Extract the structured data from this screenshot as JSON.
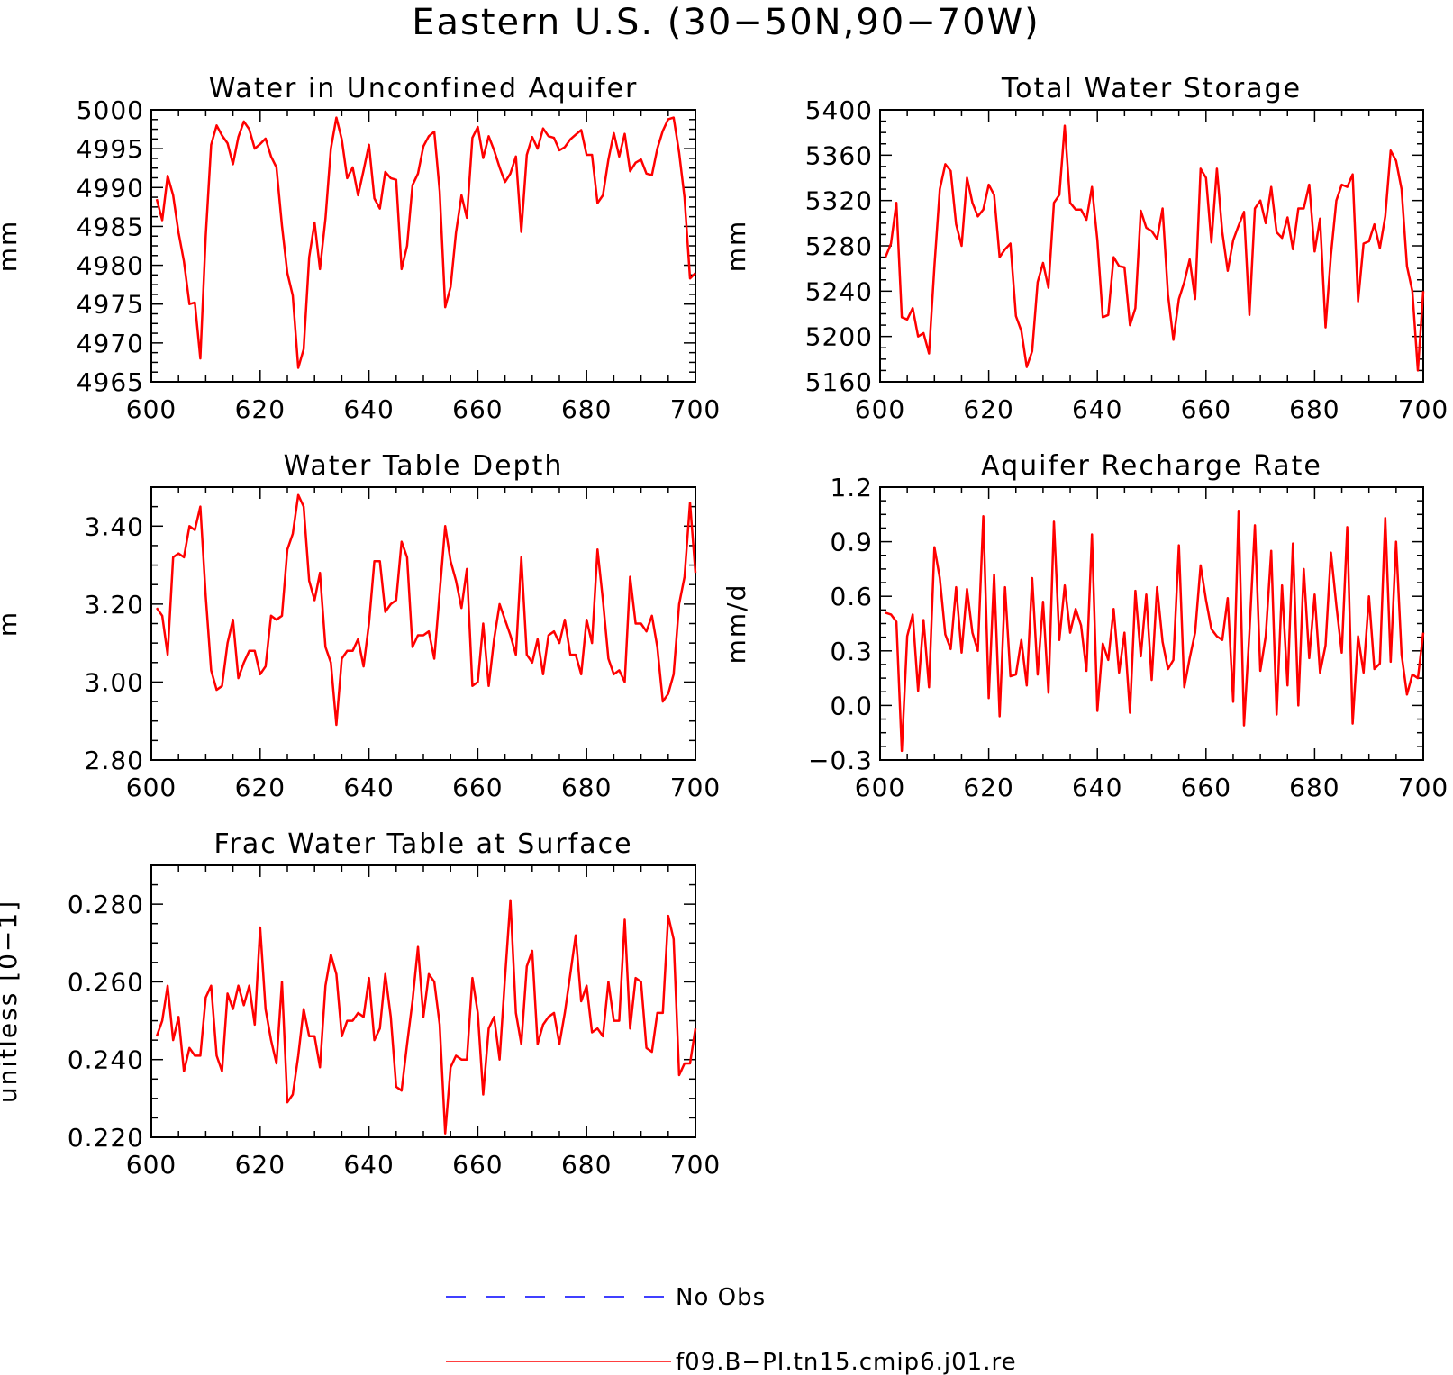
{
  "figure": {
    "title": "Eastern U.S. (30−50N,90−70W)"
  },
  "colors": {
    "model_line": "#ff0000",
    "obs_line": "#0000ff",
    "axes": "#000000"
  },
  "legend": [
    {
      "label": "No Obs",
      "style": "dashed",
      "color": "#0000ff"
    },
    {
      "label": "f09.B−PI.tn15.cmip6.j01.re",
      "style": "solid",
      "color": "#ff0000"
    }
  ],
  "chart_data": [
    {
      "type": "line",
      "title": "Water in Unconfined Aquifer",
      "xlabel": "",
      "ylabel": "mm",
      "xlim": [
        600,
        700
      ],
      "ylim": [
        4965,
        5000
      ],
      "xticks": [
        600,
        620,
        640,
        660,
        680,
        700
      ],
      "yticks": [
        4965,
        4970,
        4975,
        4980,
        4985,
        4990,
        4995,
        5000
      ],
      "ytick_labels": [
        "4965",
        "4970",
        "4975",
        "4980",
        "4985",
        "4990",
        "4995",
        "5000"
      ],
      "series": [
        {
          "name": "f09.B−PI.tn15.cmip6.j01.re",
          "x_start": 601,
          "x_step": 1,
          "values": [
            4988.5,
            4985.8,
            4991.5,
            4989,
            4984.2,
            4980.5,
            4975,
            4975.2,
            4968,
            4983.8,
            4995.5,
            4998,
            4996.7,
            4995.7,
            4993,
            4996.5,
            4998.5,
            4997.5,
            4995,
            4995.6,
            4996.3,
            4994,
            4992.6,
            4985.1,
            4979,
            4976.1,
            4966.8,
            4969.2,
            4981,
            4985.5,
            4979.5,
            4986,
            4995,
            4999,
            4996.2,
            4991.2,
            4992.6,
            4989,
            4992.2,
            4995.5,
            4988.6,
            4987.3,
            4992,
            4991.2,
            4991,
            4979.5,
            4982.5,
            4990.3,
            4991.8,
            4995.3,
            4996.6,
            4997.2,
            4989.5,
            4974.6,
            4977.2,
            4984.2,
            4989,
            4986.1,
            4996.4,
            4997.8,
            4993.8,
            4996.6,
            4994.8,
            4992.6,
            4990.7,
            4991.8,
            4994,
            4984.3,
            4994.2,
            4996.5,
            4995,
            4997.6,
            4996.6,
            4996.4,
            4994.8,
            4995.2,
            4996.2,
            4996.8,
            4997.4,
            4994.2,
            4994.2,
            4988,
            4989,
            4993.6,
            4997,
            4994,
            4996.9,
            4992.1,
            4993.2,
            4993.6,
            4991.8,
            4991.6,
            4995,
            4997.3,
            4998.8,
            4999,
            4994.5,
            4988.7,
            4978.3,
            4979
          ]
        }
      ]
    },
    {
      "type": "line",
      "title": "Total Water Storage",
      "xlabel": "",
      "ylabel": "mm",
      "xlim": [
        600,
        700
      ],
      "ylim": [
        5160,
        5400
      ],
      "xticks": [
        600,
        620,
        640,
        660,
        680,
        700
      ],
      "yticks": [
        5160,
        5200,
        5240,
        5280,
        5320,
        5360,
        5400
      ],
      "ytick_labels": [
        "5160",
        "5200",
        "5240",
        "5280",
        "5320",
        "5360",
        "5400"
      ],
      "series": [
        {
          "name": "f09.B−PI.tn15.cmip6.j01.re",
          "x_start": 601,
          "x_step": 1,
          "values": [
            5270,
            5282,
            5318,
            5217,
            5215,
            5225,
            5200,
            5203,
            5185,
            5262,
            5330,
            5352,
            5346,
            5299,
            5280,
            5340,
            5318,
            5306,
            5312,
            5334,
            5325,
            5270,
            5277,
            5282,
            5218,
            5205,
            5173,
            5187,
            5248,
            5265,
            5243,
            5318,
            5325,
            5386,
            5318,
            5312,
            5312,
            5303,
            5332,
            5285,
            5217,
            5219,
            5270,
            5262,
            5261,
            5210,
            5225,
            5311,
            5296,
            5293,
            5286,
            5313,
            5237,
            5197,
            5233,
            5248,
            5268,
            5233,
            5348,
            5340,
            5283,
            5348,
            5292,
            5258,
            5285,
            5298,
            5310,
            5219,
            5313,
            5320,
            5300,
            5332,
            5292,
            5287,
            5305,
            5277,
            5313,
            5313,
            5334,
            5275,
            5304,
            5208,
            5272,
            5320,
            5334,
            5332,
            5343,
            5231,
            5282,
            5284,
            5299,
            5278,
            5306,
            5364,
            5355,
            5330,
            5262,
            5240,
            5170,
            5240
          ]
        }
      ]
    },
    {
      "type": "line",
      "title": "Water Table Depth",
      "xlabel": "",
      "ylabel": "m",
      "xlim": [
        600,
        700
      ],
      "ylim": [
        2.8,
        3.5
      ],
      "xticks": [
        600,
        620,
        640,
        660,
        680,
        700
      ],
      "yticks": [
        2.8,
        3.0,
        3.2,
        3.4
      ],
      "ytick_labels": [
        "2.80",
        "3.00",
        "3.20",
        "3.40"
      ],
      "series": [
        {
          "name": "f09.B−PI.tn15.cmip6.j01.re",
          "x_start": 601,
          "x_step": 1,
          "values": [
            3.19,
            3.17,
            3.07,
            3.32,
            3.33,
            3.32,
            3.4,
            3.39,
            3.45,
            3.22,
            3.03,
            2.98,
            2.99,
            3.1,
            3.16,
            3.01,
            3.05,
            3.08,
            3.08,
            3.02,
            3.04,
            3.17,
            3.16,
            3.17,
            3.34,
            3.38,
            3.48,
            3.45,
            3.26,
            3.21,
            3.28,
            3.09,
            3.05,
            2.89,
            3.06,
            3.08,
            3.08,
            3.11,
            3.04,
            3.15,
            3.31,
            3.31,
            3.18,
            3.2,
            3.21,
            3.36,
            3.32,
            3.09,
            3.12,
            3.12,
            3.13,
            3.06,
            3.23,
            3.4,
            3.31,
            3.26,
            3.19,
            3.29,
            2.99,
            3.0,
            3.15,
            2.99,
            3.11,
            3.2,
            3.16,
            3.12,
            3.07,
            3.32,
            3.07,
            3.05,
            3.11,
            3.02,
            3.12,
            3.13,
            3.1,
            3.16,
            3.07,
            3.07,
            3.02,
            3.16,
            3.1,
            3.34,
            3.21,
            3.06,
            3.02,
            3.03,
            3.0,
            3.27,
            3.15,
            3.15,
            3.13,
            3.17,
            3.09,
            2.95,
            2.97,
            3.02,
            3.2,
            3.27,
            3.46,
            3.28
          ]
        }
      ]
    },
    {
      "type": "line",
      "title": "Aquifer Recharge Rate",
      "xlabel": "",
      "ylabel": "mm/d",
      "xlim": [
        600,
        700
      ],
      "ylim": [
        -0.3,
        1.2
      ],
      "xticks": [
        600,
        620,
        640,
        660,
        680,
        700
      ],
      "yticks": [
        -0.3,
        0.0,
        0.3,
        0.6,
        0.9,
        1.2
      ],
      "ytick_labels": [
        "−0.3",
        "0.0",
        "0.3",
        "0.6",
        "0.9",
        "1.2"
      ],
      "series": [
        {
          "name": "f09.B−PI.tn15.cmip6.j01.re",
          "x_start": 601,
          "x_step": 1,
          "values": [
            0.51,
            0.5,
            0.46,
            -0.25,
            0.38,
            0.5,
            0.08,
            0.47,
            0.1,
            0.87,
            0.7,
            0.39,
            0.31,
            0.65,
            0.29,
            0.64,
            0.4,
            0.3,
            1.04,
            0.04,
            0.72,
            -0.06,
            0.65,
            0.16,
            0.17,
            0.36,
            0.11,
            0.7,
            0.17,
            0.57,
            0.07,
            1.01,
            0.36,
            0.66,
            0.4,
            0.53,
            0.44,
            0.19,
            0.94,
            -0.03,
            0.34,
            0.25,
            0.53,
            0.18,
            0.4,
            -0.04,
            0.63,
            0.27,
            0.61,
            0.14,
            0.65,
            0.35,
            0.2,
            0.25,
            0.88,
            0.1,
            0.26,
            0.4,
            0.77,
            0.58,
            0.42,
            0.38,
            0.36,
            0.59,
            0.02,
            1.07,
            -0.11,
            0.4,
            0.99,
            0.19,
            0.38,
            0.85,
            -0.05,
            0.66,
            0.11,
            0.89,
            0.0,
            0.75,
            0.26,
            0.61,
            0.18,
            0.33,
            0.84,
            0.55,
            0.29,
            0.98,
            -0.1,
            0.38,
            0.18,
            0.6,
            0.2,
            0.23,
            1.03,
            0.24,
            0.9,
            0.28,
            0.06,
            0.17,
            0.15,
            0.4
          ]
        }
      ]
    },
    {
      "type": "line",
      "title": "Frac Water Table at Surface",
      "xlabel": "",
      "ylabel": "unitless [0−1]",
      "xlim": [
        600,
        700
      ],
      "ylim": [
        0.22,
        0.29
      ],
      "xticks": [
        600,
        620,
        640,
        660,
        680,
        700
      ],
      "yticks": [
        0.22,
        0.24,
        0.26,
        0.28
      ],
      "ytick_labels": [
        "0.220",
        "0.240",
        "0.260",
        "0.280"
      ],
      "series": [
        {
          "name": "f09.B−PI.tn15.cmip6.j01.re",
          "x_start": 601,
          "x_step": 1,
          "values": [
            0.246,
            0.25,
            0.259,
            0.245,
            0.251,
            0.237,
            0.243,
            0.241,
            0.241,
            0.256,
            0.259,
            0.241,
            0.237,
            0.257,
            0.253,
            0.259,
            0.254,
            0.259,
            0.249,
            0.274,
            0.253,
            0.245,
            0.239,
            0.26,
            0.229,
            0.231,
            0.241,
            0.253,
            0.246,
            0.246,
            0.238,
            0.259,
            0.267,
            0.262,
            0.246,
            0.25,
            0.25,
            0.252,
            0.251,
            0.261,
            0.245,
            0.248,
            0.262,
            0.251,
            0.233,
            0.232,
            0.244,
            0.255,
            0.269,
            0.251,
            0.262,
            0.26,
            0.249,
            0.221,
            0.238,
            0.241,
            0.24,
            0.24,
            0.261,
            0.252,
            0.231,
            0.248,
            0.251,
            0.24,
            0.261,
            0.281,
            0.252,
            0.244,
            0.264,
            0.268,
            0.244,
            0.249,
            0.251,
            0.252,
            0.244,
            0.252,
            0.262,
            0.272,
            0.255,
            0.259,
            0.247,
            0.248,
            0.246,
            0.26,
            0.25,
            0.25,
            0.276,
            0.248,
            0.261,
            0.26,
            0.243,
            0.242,
            0.252,
            0.252,
            0.277,
            0.271,
            0.236,
            0.239,
            0.239,
            0.248
          ]
        }
      ]
    }
  ]
}
